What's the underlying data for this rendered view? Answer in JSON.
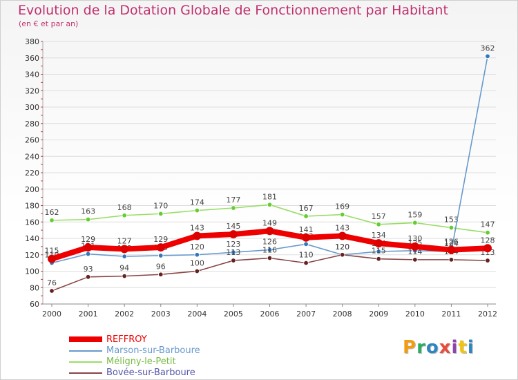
{
  "title": "Evolution de la Dotation Globale de Fonctionnement par Habitant",
  "subtitle": "(en € et par an)",
  "logo_text": "Proxiti",
  "logo_colors": [
    "#f39c12",
    "#27ae60",
    "#2e86c1",
    "#e74c3c",
    "#8e44ad",
    "#f1c40f",
    "#2e86c1"
  ],
  "chart_data": {
    "type": "line",
    "title": "Evolution de la Dotation Globale de Fonctionnement par Habitant",
    "subtitle": "(en € et par an)",
    "xlabel": "",
    "ylabel": "",
    "ylim": [
      60,
      380
    ],
    "ytick_step": 20,
    "x": [
      "2000",
      "2001",
      "2002",
      "2003",
      "2004",
      "2005",
      "2006",
      "2007",
      "2008",
      "2009",
      "2010",
      "2011",
      "2012"
    ],
    "series": [
      {
        "name": "Méligny-le-Petit",
        "color": "#99dd66",
        "marker": "#66cc33",
        "values": [
          162,
          163,
          168,
          170,
          174,
          177,
          181,
          167,
          169,
          157,
          159,
          153,
          147
        ],
        "labels": [
          "162",
          "163",
          "168",
          "170",
          "174",
          "177",
          "181",
          "167",
          "169",
          "157",
          "159",
          "153",
          "147"
        ]
      },
      {
        "name": "Marson-sur-Barboure",
        "color": "#6699cc",
        "marker": "#3377bb",
        "values": [
          110,
          121,
          118,
          119,
          120,
          123,
          126,
          133,
          120,
          124,
          125,
          124,
          362
        ],
        "labels": [
          "110",
          "121",
          "118",
          "119",
          "120",
          "123",
          "126",
          "133",
          "120",
          "124",
          "125",
          "124",
          "362"
        ]
      },
      {
        "name": "Bovée-sur-Barboure",
        "color": "#884444",
        "marker": "#662222",
        "values": [
          76,
          93,
          94,
          96,
          100,
          113,
          116,
          110,
          120,
          115,
          114,
          114,
          113
        ],
        "labels": [
          "76",
          "93",
          "94",
          "96",
          "100",
          "113",
          "116",
          "110",
          "120",
          "115",
          "114",
          "114",
          "113"
        ]
      },
      {
        "name": "REFFROY",
        "color": "#ee0000",
        "marker": "#dd0000",
        "values": [
          115,
          129,
          127,
          129,
          143,
          145,
          149,
          141,
          143,
          134,
          130,
          126,
          128
        ],
        "labels": [
          "115",
          "129",
          "127",
          "129",
          "143",
          "145",
          "149",
          "141",
          "143",
          "134",
          "130",
          "126",
          "128"
        ]
      }
    ],
    "legend": [
      "REFFROY",
      "Marson-sur-Barboure",
      "Méligny-le-Petit",
      "Bovée-sur-Barboure"
    ],
    "legend_position": "bottom-left"
  },
  "legend_colors": {
    "REFFROY": "#ee0000",
    "Marson-sur-Barboure": "#6699cc",
    "Méligny-le-Petit": "#99dd66",
    "Bovée-sur-Barboure": "#884444"
  }
}
